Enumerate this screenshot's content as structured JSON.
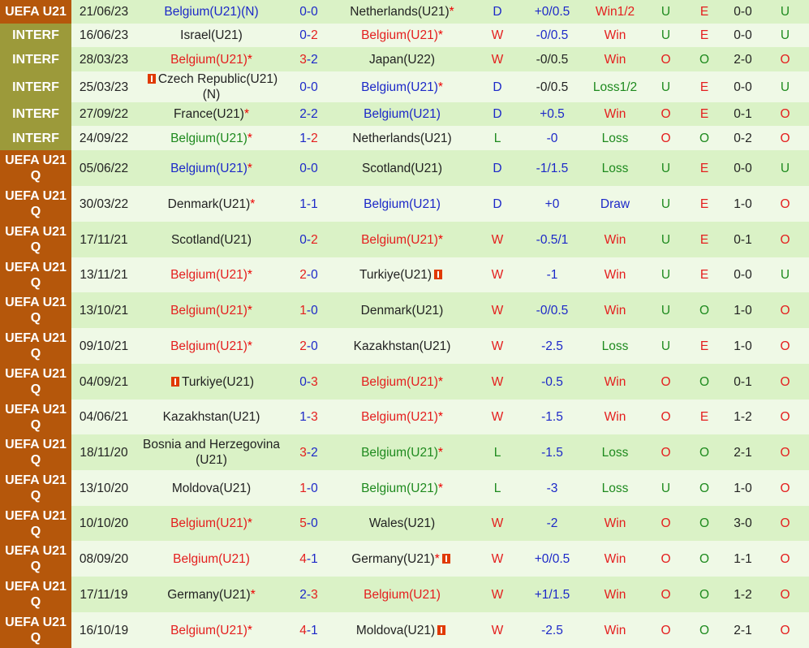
{
  "colors": {
    "uefa_bg": "#b5570b",
    "interf_bg": "#9c9a3a",
    "row_even": "#daf2c6",
    "row_odd": "#eff9e6",
    "red": "#e41e1e",
    "blue": "#1c28c8",
    "green": "#1e8a1e"
  },
  "rows": [
    {
      "comp": "UEFA U21",
      "date": "21/06/23",
      "home": {
        "name": "Belgium(U21)(N)",
        "star": "",
        "color": "blue"
      },
      "score": "0-0",
      "away": {
        "name": "Netherlands(U21)",
        "star": "*",
        "color": "black"
      },
      "result": "D",
      "handicap": "+0/0.5",
      "hcolor": "blue",
      "outcome": "Win1/2",
      "ou": "U",
      "half": "E",
      "halfscore": "0-0",
      "last": "U"
    },
    {
      "comp": "INTERF",
      "date": "16/06/23",
      "home": {
        "name": "Israel(U21)",
        "star": "",
        "color": "black"
      },
      "score": "0-2",
      "away": {
        "name": "Belgium(U21)",
        "star": "*",
        "color": "red"
      },
      "result": "W",
      "handicap": "-0/0.5",
      "hcolor": "blue",
      "outcome": "Win",
      "ou": "U",
      "half": "E",
      "halfscore": "0-0",
      "last": "U"
    },
    {
      "comp": "INTERF",
      "date": "28/03/23",
      "home": {
        "name": "Belgium(U21)",
        "star": "*",
        "color": "red"
      },
      "score": "3-2",
      "away": {
        "name": "Japan(U22)",
        "star": "",
        "color": "black"
      },
      "result": "W",
      "handicap": "-0/0.5",
      "hcolor": "black",
      "outcome": "Win",
      "ou": "O",
      "half": "O",
      "halfscore": "2-0",
      "last": "O"
    },
    {
      "comp": "INTERF",
      "date": "25/03/23",
      "home": {
        "name": "Czech Republic(U21)(N)",
        "star": "",
        "color": "black",
        "flag": "red-card-icon",
        "flag_pos": "before"
      },
      "score": "0-0",
      "away": {
        "name": "Belgium(U21)",
        "star": "*",
        "color": "blue"
      },
      "result": "D",
      "handicap": "-0/0.5",
      "hcolor": "black",
      "outcome": "Loss1/2",
      "ou": "U",
      "half": "E",
      "halfscore": "0-0",
      "last": "U"
    },
    {
      "comp": "INTERF",
      "date": "27/09/22",
      "home": {
        "name": "France(U21)",
        "star": "*",
        "color": "black"
      },
      "score": "2-2",
      "away": {
        "name": "Belgium(U21)",
        "star": "",
        "color": "blue"
      },
      "result": "D",
      "handicap": "+0.5",
      "hcolor": "blue",
      "outcome": "Win",
      "ou": "O",
      "half": "E",
      "halfscore": "0-1",
      "last": "O"
    },
    {
      "comp": "INTERF",
      "date": "24/09/22",
      "home": {
        "name": "Belgium(U21)",
        "star": "*",
        "color": "green"
      },
      "score": "1-2",
      "away": {
        "name": "Netherlands(U21)",
        "star": "",
        "color": "black"
      },
      "result": "L",
      "handicap": "-0",
      "hcolor": "blue",
      "outcome": "Loss",
      "ou": "O",
      "half": "O",
      "halfscore": "0-2",
      "last": "O"
    },
    {
      "comp": "UEFA U21 Q",
      "date": "05/06/22",
      "home": {
        "name": "Belgium(U21)",
        "star": "*",
        "color": "blue"
      },
      "score": "0-0",
      "away": {
        "name": "Scotland(U21)",
        "star": "",
        "color": "black"
      },
      "result": "D",
      "handicap": "-1/1.5",
      "hcolor": "blue",
      "outcome": "Loss",
      "ou": "U",
      "half": "E",
      "halfscore": "0-0",
      "last": "U"
    },
    {
      "comp": "UEFA U21 Q",
      "date": "30/03/22",
      "home": {
        "name": "Denmark(U21)",
        "star": "*",
        "color": "black"
      },
      "score": "1-1",
      "away": {
        "name": "Belgium(U21)",
        "star": "",
        "color": "blue"
      },
      "result": "D",
      "handicap": "+0",
      "hcolor": "blue",
      "outcome": "Draw",
      "ou": "U",
      "half": "E",
      "halfscore": "1-0",
      "last": "O"
    },
    {
      "comp": "UEFA U21 Q",
      "date": "17/11/21",
      "home": {
        "name": "Scotland(U21)",
        "star": "",
        "color": "black"
      },
      "score": "0-2",
      "away": {
        "name": "Belgium(U21)",
        "star": "*",
        "color": "red"
      },
      "result": "W",
      "handicap": "-0.5/1",
      "hcolor": "blue",
      "outcome": "Win",
      "ou": "U",
      "half": "E",
      "halfscore": "0-1",
      "last": "O"
    },
    {
      "comp": "UEFA U21 Q",
      "date": "13/11/21",
      "home": {
        "name": "Belgium(U21)",
        "star": "*",
        "color": "red"
      },
      "score": "2-0",
      "away": {
        "name": "Turkiye(U21)",
        "star": "",
        "color": "black",
        "flag": "red-card-icon",
        "flag_pos": "after"
      },
      "result": "W",
      "handicap": "-1",
      "hcolor": "blue",
      "outcome": "Win",
      "ou": "U",
      "half": "E",
      "halfscore": "0-0",
      "last": "U"
    },
    {
      "comp": "UEFA U21 Q",
      "date": "13/10/21",
      "home": {
        "name": "Belgium(U21)",
        "star": "*",
        "color": "red"
      },
      "score": "1-0",
      "away": {
        "name": "Denmark(U21)",
        "star": "",
        "color": "black"
      },
      "result": "W",
      "handicap": "-0/0.5",
      "hcolor": "blue",
      "outcome": "Win",
      "ou": "U",
      "half": "O",
      "halfscore": "1-0",
      "last": "O"
    },
    {
      "comp": "UEFA U21 Q",
      "date": "09/10/21",
      "home": {
        "name": "Belgium(U21)",
        "star": "*",
        "color": "red"
      },
      "score": "2-0",
      "away": {
        "name": "Kazakhstan(U21)",
        "star": "",
        "color": "black"
      },
      "result": "W",
      "handicap": "-2.5",
      "hcolor": "blue",
      "outcome": "Loss",
      "ou": "U",
      "half": "E",
      "halfscore": "1-0",
      "last": "O"
    },
    {
      "comp": "UEFA U21 Q",
      "date": "04/09/21",
      "home": {
        "name": "Turkiye(U21)",
        "star": "",
        "color": "black",
        "flag": "red-card-icon",
        "flag_pos": "before"
      },
      "score": "0-3",
      "away": {
        "name": "Belgium(U21)",
        "star": "*",
        "color": "red"
      },
      "result": "W",
      "handicap": "-0.5",
      "hcolor": "blue",
      "outcome": "Win",
      "ou": "O",
      "half": "O",
      "halfscore": "0-1",
      "last": "O"
    },
    {
      "comp": "UEFA U21 Q",
      "date": "04/06/21",
      "home": {
        "name": "Kazakhstan(U21)",
        "star": "",
        "color": "black"
      },
      "score": "1-3",
      "away": {
        "name": "Belgium(U21)",
        "star": "*",
        "color": "red"
      },
      "result": "W",
      "handicap": "-1.5",
      "hcolor": "blue",
      "outcome": "Win",
      "ou": "O",
      "half": "E",
      "halfscore": "1-2",
      "last": "O"
    },
    {
      "comp": "UEFA U21 Q",
      "date": "18/11/20",
      "home": {
        "name": "Bosnia and Herzegovina (U21)",
        "star": "",
        "color": "black"
      },
      "score": "3-2",
      "away": {
        "name": "Belgium(U21)",
        "star": "*",
        "color": "green"
      },
      "result": "L",
      "handicap": "-1.5",
      "hcolor": "blue",
      "outcome": "Loss",
      "ou": "O",
      "half": "O",
      "halfscore": "2-1",
      "last": "O"
    },
    {
      "comp": "UEFA U21 Q",
      "date": "13/10/20",
      "home": {
        "name": "Moldova(U21)",
        "star": "",
        "color": "black"
      },
      "score": "1-0",
      "away": {
        "name": "Belgium(U21)",
        "star": "*",
        "color": "green"
      },
      "result": "L",
      "handicap": "-3",
      "hcolor": "blue",
      "outcome": "Loss",
      "ou": "U",
      "half": "O",
      "halfscore": "1-0",
      "last": "O"
    },
    {
      "comp": "UEFA U21 Q",
      "date": "10/10/20",
      "home": {
        "name": "Belgium(U21)",
        "star": "*",
        "color": "red"
      },
      "score": "5-0",
      "away": {
        "name": "Wales(U21)",
        "star": "",
        "color": "black"
      },
      "result": "W",
      "handicap": "-2",
      "hcolor": "blue",
      "outcome": "Win",
      "ou": "O",
      "half": "O",
      "halfscore": "3-0",
      "last": "O"
    },
    {
      "comp": "UEFA U21 Q",
      "date": "08/09/20",
      "home": {
        "name": "Belgium(U21)",
        "star": "",
        "color": "red"
      },
      "score": "4-1",
      "away": {
        "name": "Germany(U21)",
        "star": "*",
        "color": "black",
        "flag": "red-card-icon",
        "flag_pos": "after"
      },
      "result": "W",
      "handicap": "+0/0.5",
      "hcolor": "blue",
      "outcome": "Win",
      "ou": "O",
      "half": "O",
      "halfscore": "1-1",
      "last": "O"
    },
    {
      "comp": "UEFA U21 Q",
      "date": "17/11/19",
      "home": {
        "name": "Germany(U21)",
        "star": "*",
        "color": "black"
      },
      "score": "2-3",
      "away": {
        "name": "Belgium(U21)",
        "star": "",
        "color": "red"
      },
      "result": "W",
      "handicap": "+1/1.5",
      "hcolor": "blue",
      "outcome": "Win",
      "ou": "O",
      "half": "O",
      "halfscore": "1-2",
      "last": "O"
    },
    {
      "comp": "UEFA U21 Q",
      "date": "16/10/19",
      "home": {
        "name": "Belgium(U21)",
        "star": "*",
        "color": "red"
      },
      "score": "4-1",
      "away": {
        "name": "Moldova(U21)",
        "star": "",
        "color": "black",
        "flag": "red-card-icon",
        "flag_pos": "after"
      },
      "result": "W",
      "handicap": "-2.5",
      "hcolor": "blue",
      "outcome": "Win",
      "ou": "O",
      "half": "O",
      "halfscore": "2-1",
      "last": "O"
    }
  ]
}
